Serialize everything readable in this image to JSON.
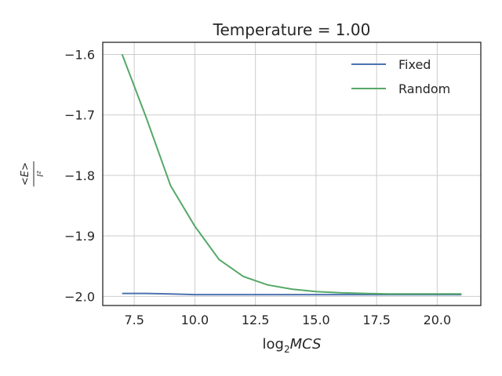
{
  "chart_data": {
    "type": "line",
    "title": "Temperature = 1.00",
    "xlabel": "log₂MCS",
    "ylabel": "<E>/l²",
    "xlim": [
      6.2,
      21.8
    ],
    "ylim": [
      -2.015,
      -1.58
    ],
    "xticks": [
      7.5,
      10.0,
      12.5,
      15.0,
      17.5,
      20.0
    ],
    "xtick_labels": [
      "7.5",
      "10.0",
      "12.5",
      "15.0",
      "17.5",
      "20.0"
    ],
    "yticks": [
      -1.6,
      -1.7,
      -1.8,
      -1.9,
      -2.0
    ],
    "ytick_labels": [
      "−1.6",
      "−1.7",
      "−1.8",
      "−1.9",
      "−2.0"
    ],
    "grid": true,
    "legend_position": "top-right",
    "x": [
      7,
      8,
      9,
      10,
      11,
      12,
      13,
      14,
      15,
      16,
      17,
      18,
      19,
      20,
      21
    ],
    "series": [
      {
        "name": "Fixed",
        "color": "#4c72b0",
        "values": [
          -1.995,
          -1.995,
          -1.996,
          -1.997,
          -1.997,
          -1.997,
          -1.997,
          -1.997,
          -1.997,
          -1.997,
          -1.997,
          -1.997,
          -1.997,
          -1.997,
          -1.997
        ]
      },
      {
        "name": "Random",
        "color": "#55a868",
        "values": [
          -1.6,
          -1.705,
          -1.817,
          -1.884,
          -1.939,
          -1.967,
          -1.981,
          -1.988,
          -1.992,
          -1.994,
          -1.995,
          -1.996,
          -1.996,
          -1.996,
          -1.996
        ]
      }
    ]
  }
}
